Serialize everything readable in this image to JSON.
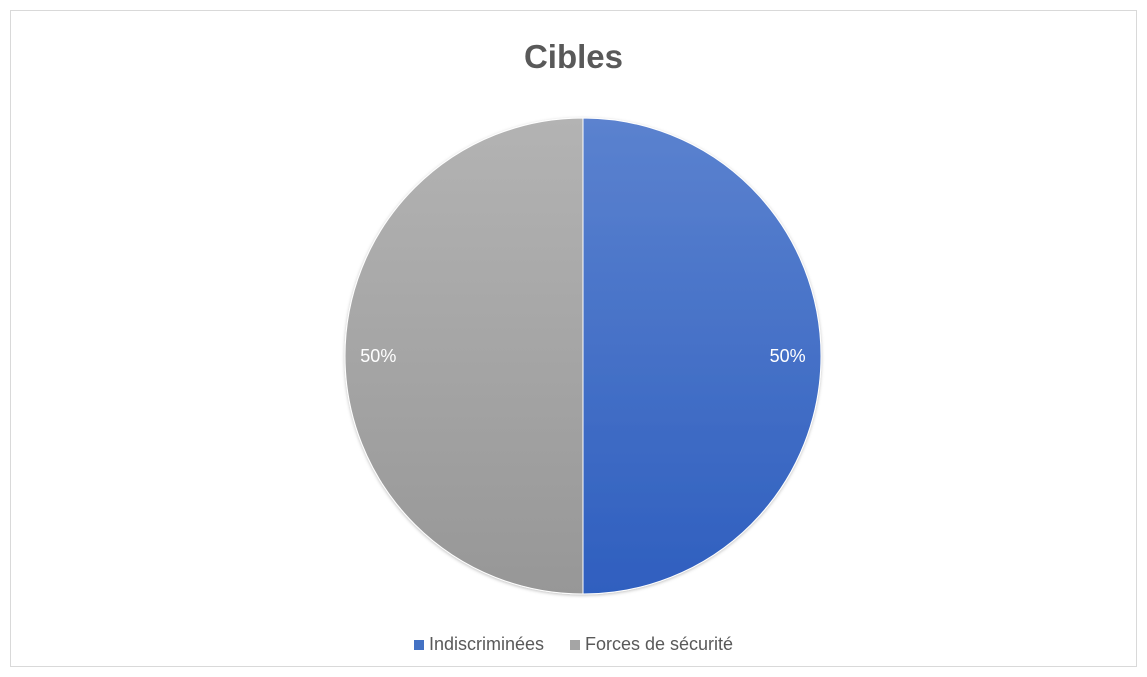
{
  "chart_data": {
    "type": "pie",
    "title": "Cibles",
    "categories": [
      "Indiscriminées",
      "Forces de sécurité"
    ],
    "values": [
      50,
      50
    ],
    "data_labels": [
      "50%",
      "50%"
    ],
    "colors": [
      "#4472C4",
      "#A5A5A5"
    ],
    "legend_position": "bottom"
  }
}
